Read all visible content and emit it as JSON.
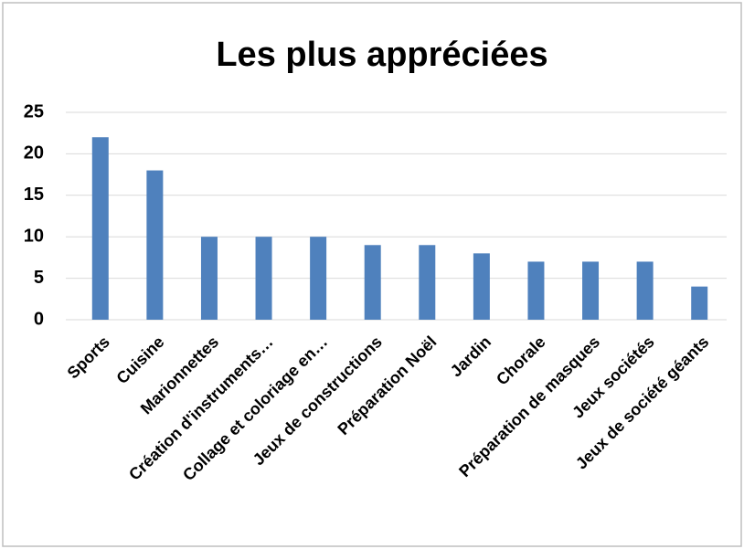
{
  "chart_data": {
    "type": "bar",
    "title": "Les plus appréciées",
    "categories": [
      "Sports",
      "Cuisine",
      "Marionnettes",
      "Création d'instruments…",
      "Collage et coloriage en…",
      "Jeux de constructions",
      "Préparation Noël",
      "Jardin",
      "Chorale",
      "Préparation de masques",
      "Jeux sociétés",
      "Jeux de société géants"
    ],
    "values": [
      22,
      18,
      10,
      10,
      10,
      9,
      9,
      8,
      7,
      7,
      7,
      4
    ],
    "color": "#4f81bd",
    "ylim": [
      0,
      25
    ],
    "yticks": [
      0,
      5,
      10,
      15,
      20,
      25
    ],
    "grid": true
  }
}
